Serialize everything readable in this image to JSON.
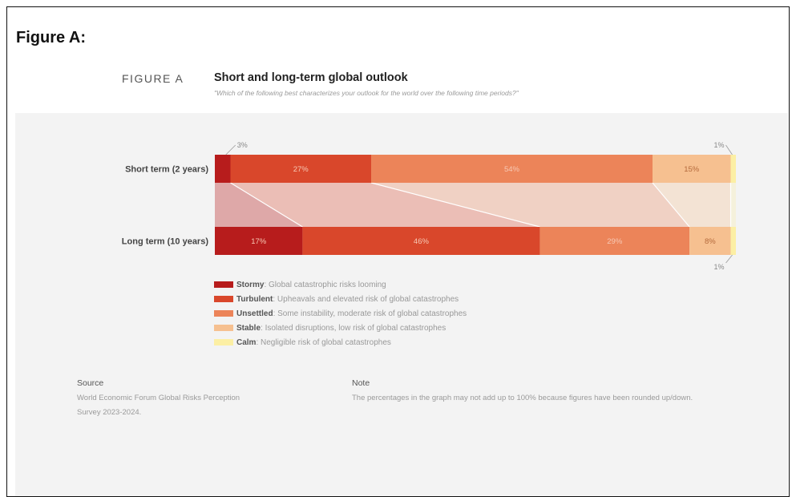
{
  "outer_title": "Figure A:",
  "figure": {
    "label": "FIGURE A",
    "title": "Short and long-term global outlook",
    "subtitle": "\"Which of the following best characterizes your outlook for the world over the following time periods?\""
  },
  "chart_data": {
    "type": "bar",
    "orientation": "horizontal",
    "stacked": true,
    "normalized": true,
    "categories": [
      "Short term (2 years)",
      "Long term (10 years)"
    ],
    "series": [
      {
        "name": "Stormy",
        "description": ": Global catastrophic risks looming",
        "values": [
          3,
          17
        ],
        "labels": [
          "3%",
          "17%"
        ],
        "color": "#b71c1c"
      },
      {
        "name": "Turbulent",
        "description": ": Upheavals and elevated risk of global catastrophes",
        "values": [
          27,
          46
        ],
        "labels": [
          "27%",
          "46%"
        ],
        "color": "#d9472b"
      },
      {
        "name": "Unsettled",
        "description": ": Some instability, moderate risk of global catastrophes",
        "values": [
          54,
          29
        ],
        "labels": [
          "54%",
          "29%"
        ],
        "color": "#ec8459"
      },
      {
        "name": "Stable",
        "description": ": Isolated disruptions, low risk of global catastrophes",
        "values": [
          15,
          8
        ],
        "labels": [
          "15%",
          "8%"
        ],
        "color": "#f6c090"
      },
      {
        "name": "Calm",
        "description": ": Negligible risk of global catastrophes",
        "values": [
          1,
          1
        ],
        "labels": [
          "1%",
          "1%"
        ],
        "color": "#fcefa4"
      }
    ],
    "legend_position": "bottom-left",
    "grid": false
  },
  "source": {
    "heading": "Source",
    "text": "World Economic Forum Global Risks Perception Survey 2023-2024."
  },
  "note": {
    "heading": "Note",
    "text": "The percentages in the graph may not add up to 100% because figures have been rounded up/down."
  }
}
